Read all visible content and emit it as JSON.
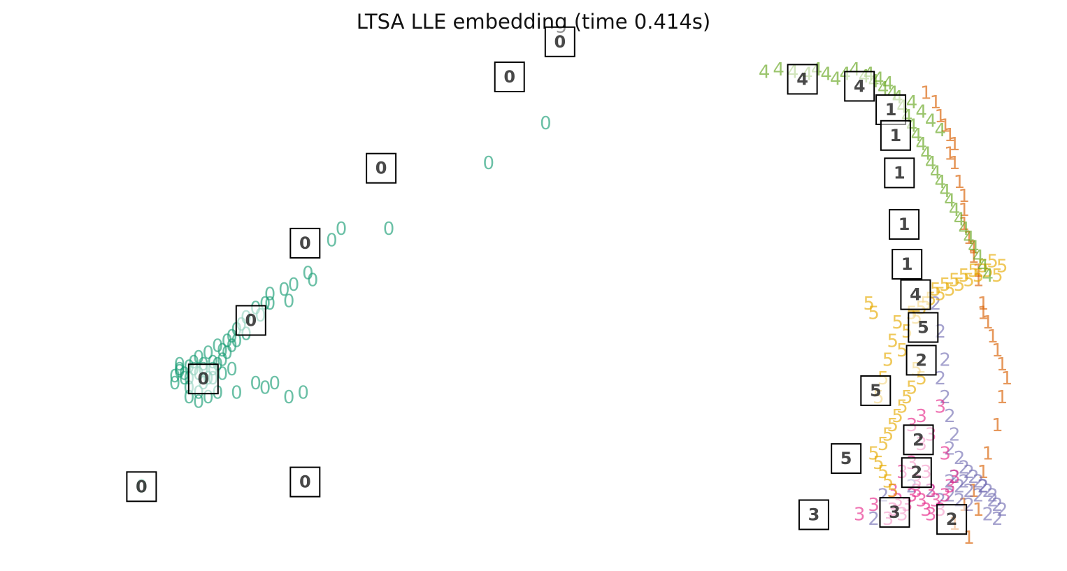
{
  "chart_data": {
    "type": "scatter",
    "title": "LTSA LLE embedding (time 0.414s)",
    "xlabel": "",
    "ylabel": "",
    "axes_visible": false,
    "grid": false,
    "xlim": [
      0,
      1
    ],
    "ylim": [
      0,
      1
    ],
    "marker": "digit-text",
    "colors": {
      "0": "#1b9e77",
      "1": "#d95f02",
      "2": "#7570b3",
      "3": "#e7298a",
      "4": "#66a61e",
      "5": "#e6ab02"
    },
    "series": [
      {
        "label": "0",
        "x": [
          0.09,
          0.125,
          0.13,
          0.13,
          0.13,
          0.135,
          0.14,
          0.14,
          0.145,
          0.145,
          0.15,
          0.15,
          0.155,
          0.155,
          0.16,
          0.16,
          0.165,
          0.165,
          0.17,
          0.17,
          0.175,
          0.175,
          0.18,
          0.18,
          0.185,
          0.185,
          0.19,
          0.19,
          0.195,
          0.2,
          0.2,
          0.21,
          0.215,
          0.22,
          0.225,
          0.24,
          0.25,
          0.245,
          0.265,
          0.27,
          0.29,
          0.3,
          0.35,
          0.455,
          0.515,
          0.225,
          0.14,
          0.15,
          0.19,
          0.21,
          0.22,
          0.23,
          0.245,
          0.26,
          0.15,
          0.16,
          0.17,
          0.14,
          0.155,
          0.165,
          0.175,
          0.185,
          0.125,
          0.135
        ],
        "y": [
          0.11,
          0.345,
          0.355,
          0.37,
          0.36,
          0.35,
          0.34,
          0.365,
          0.375,
          0.36,
          0.35,
          0.385,
          0.37,
          0.36,
          0.34,
          0.395,
          0.375,
          0.36,
          0.41,
          0.37,
          0.4,
          0.38,
          0.42,
          0.395,
          0.43,
          0.41,
          0.445,
          0.42,
          0.455,
          0.47,
          0.435,
          0.49,
          0.475,
          0.5,
          0.52,
          0.53,
          0.54,
          0.505,
          0.565,
          0.55,
          0.635,
          0.66,
          0.66,
          0.8,
          0.885,
          0.5,
          0.3,
          0.31,
          0.31,
          0.33,
          0.32,
          0.33,
          0.3,
          0.31,
          0.29,
          0.3,
          0.31,
          0.32,
          0.33,
          0.34,
          0.35,
          0.36,
          0.33,
          0.34
        ]
      },
      {
        "label": "1",
        "x": [
          0.915,
          0.925,
          0.93,
          0.935,
          0.94,
          0.945,
          0.94,
          0.945,
          0.95,
          0.955,
          0.955,
          0.955,
          0.96,
          0.965,
          0.965,
          0.97,
          0.97,
          0.975,
          0.975,
          0.98,
          0.985,
          0.99,
          0.995,
          1.0,
          0.995,
          0.99,
          0.98,
          0.975,
          0.965,
          0.955,
          0.945,
          0.96,
          0.97
        ],
        "y": [
          0.95,
          0.93,
          0.9,
          0.88,
          0.86,
          0.84,
          0.82,
          0.8,
          0.76,
          0.73,
          0.7,
          0.67,
          0.64,
          0.62,
          0.6,
          0.57,
          0.55,
          0.5,
          0.48,
          0.46,
          0.43,
          0.4,
          0.37,
          0.34,
          0.3,
          0.24,
          0.18,
          0.14,
          0.1,
          0.07,
          0.03,
          0.0,
          0.06
        ]
      },
      {
        "label": "2",
        "x": [
          0.925,
          0.93,
          0.935,
          0.93,
          0.935,
          0.94,
          0.945,
          0.94,
          0.95,
          0.955,
          0.96,
          0.965,
          0.97,
          0.975,
          0.98,
          0.985,
          0.99,
          0.995,
          0.985,
          0.975,
          0.96,
          0.95,
          0.94,
          0.93,
          0.92,
          0.9,
          0.87,
          0.86,
          0.94,
          0.95,
          0.96,
          0.97,
          0.98,
          0.99,
          0.945,
          0.955
        ],
        "y": [
          0.5,
          0.44,
          0.38,
          0.34,
          0.3,
          0.26,
          0.22,
          0.19,
          0.17,
          0.15,
          0.14,
          0.13,
          0.12,
          0.11,
          0.1,
          0.08,
          0.07,
          0.06,
          0.09,
          0.11,
          0.1,
          0.11,
          0.09,
          0.08,
          0.1,
          0.11,
          0.09,
          0.04,
          0.12,
          0.08,
          0.07,
          0.09,
          0.05,
          0.04,
          0.13,
          0.12
        ]
      },
      {
        "label": "3",
        "x": [
          0.845,
          0.86,
          0.875,
          0.88,
          0.885,
          0.89,
          0.895,
          0.9,
          0.905,
          0.91,
          0.915,
          0.92,
          0.92,
          0.925,
          0.93,
          0.935,
          0.94,
          0.945,
          0.91,
          0.9,
          0.89,
          0.88,
          0.905,
          0.915,
          0.9,
          0.91,
          0.92,
          0.935,
          0.93
        ],
        "y": [
          0.05,
          0.07,
          0.04,
          0.06,
          0.08,
          0.05,
          0.07,
          0.09,
          0.1,
          0.08,
          0.06,
          0.05,
          0.1,
          0.08,
          0.06,
          0.09,
          0.11,
          0.13,
          0.2,
          0.16,
          0.14,
          0.1,
          0.12,
          0.14,
          0.24,
          0.26,
          0.22,
          0.18,
          0.28
        ]
      },
      {
        "label": "5",
        "x": [
          0.855,
          0.86,
          0.865,
          0.87,
          0.875,
          0.88,
          0.885,
          0.89,
          0.895,
          0.9,
          0.905,
          0.91,
          0.915,
          0.92,
          0.925,
          0.93,
          0.935,
          0.94,
          0.945,
          0.95,
          0.955,
          0.96,
          0.965,
          0.97,
          0.975,
          0.98,
          0.985,
          0.99,
          0.995,
          0.87,
          0.875,
          0.88,
          0.885,
          0.89,
          0.895,
          0.9,
          0.905,
          0.91,
          0.86,
          0.865,
          0.87,
          0.875,
          0.88
        ],
        "y": [
          0.5,
          0.48,
          0.3,
          0.34,
          0.38,
          0.42,
          0.46,
          0.4,
          0.44,
          0.48,
          0.47,
          0.49,
          0.5,
          0.51,
          0.53,
          0.52,
          0.54,
          0.53,
          0.55,
          0.54,
          0.56,
          0.55,
          0.57,
          0.56,
          0.58,
          0.57,
          0.59,
          0.56,
          0.58,
          0.2,
          0.22,
          0.24,
          0.26,
          0.28,
          0.3,
          0.32,
          0.36,
          0.34,
          0.18,
          0.16,
          0.14,
          0.12,
          0.1
        ]
      },
      {
        "label": "4",
        "x": [
          0.745,
          0.76,
          0.775,
          0.79,
          0.8,
          0.81,
          0.82,
          0.83,
          0.84,
          0.85,
          0.855,
          0.86,
          0.865,
          0.87,
          0.875,
          0.88,
          0.885,
          0.89,
          0.895,
          0.9,
          0.905,
          0.91,
          0.915,
          0.92,
          0.925,
          0.93,
          0.935,
          0.94,
          0.945,
          0.95,
          0.955,
          0.96,
          0.965,
          0.97,
          0.975,
          0.98,
          0.9,
          0.91,
          0.92,
          0.93
        ],
        "y": [
          0.995,
          1.0,
          0.995,
          0.99,
          1.0,
          0.99,
          0.98,
          0.99,
          1.0,
          0.985,
          0.99,
          0.975,
          0.98,
          0.96,
          0.97,
          0.95,
          0.94,
          0.92,
          0.9,
          0.88,
          0.86,
          0.84,
          0.82,
          0.8,
          0.78,
          0.76,
          0.74,
          0.72,
          0.7,
          0.68,
          0.66,
          0.64,
          0.62,
          0.6,
          0.58,
          0.56,
          0.93,
          0.91,
          0.89,
          0.87
        ]
      }
    ],
    "thumbnails": [
      {
        "label": "0",
        "x": 0.09,
        "y": 0.11
      },
      {
        "label": "0",
        "x": 0.155,
        "y": 0.34
      },
      {
        "label": "0",
        "x": 0.205,
        "y": 0.465
      },
      {
        "label": "0",
        "x": 0.262,
        "y": 0.63
      },
      {
        "label": "0",
        "x": 0.262,
        "y": 0.12
      },
      {
        "label": "0",
        "x": 0.342,
        "y": 0.79
      },
      {
        "label": "0",
        "x": 0.477,
        "y": 0.985
      },
      {
        "label": "0",
        "x": 0.53,
        "y": 1.06
      },
      {
        "label": "4",
        "x": 0.785,
        "y": 0.98
      },
      {
        "label": "4",
        "x": 0.845,
        "y": 0.965
      },
      {
        "label": "1",
        "x": 0.878,
        "y": 0.915
      },
      {
        "label": "1",
        "x": 0.883,
        "y": 0.86
      },
      {
        "label": "1",
        "x": 0.887,
        "y": 0.78
      },
      {
        "label": "1",
        "x": 0.892,
        "y": 0.67
      },
      {
        "label": "1",
        "x": 0.895,
        "y": 0.585
      },
      {
        "label": "4",
        "x": 0.904,
        "y": 0.52
      },
      {
        "label": "5",
        "x": 0.912,
        "y": 0.45
      },
      {
        "label": "2",
        "x": 0.91,
        "y": 0.38
      },
      {
        "label": "5",
        "x": 0.862,
        "y": 0.315
      },
      {
        "label": "5",
        "x": 0.831,
        "y": 0.17
      },
      {
        "label": "2",
        "x": 0.907,
        "y": 0.21
      },
      {
        "label": "2",
        "x": 0.905,
        "y": 0.14
      },
      {
        "label": "3",
        "x": 0.797,
        "y": 0.05
      },
      {
        "label": "3",
        "x": 0.882,
        "y": 0.055
      },
      {
        "label": "2",
        "x": 0.942,
        "y": 0.04
      }
    ]
  }
}
